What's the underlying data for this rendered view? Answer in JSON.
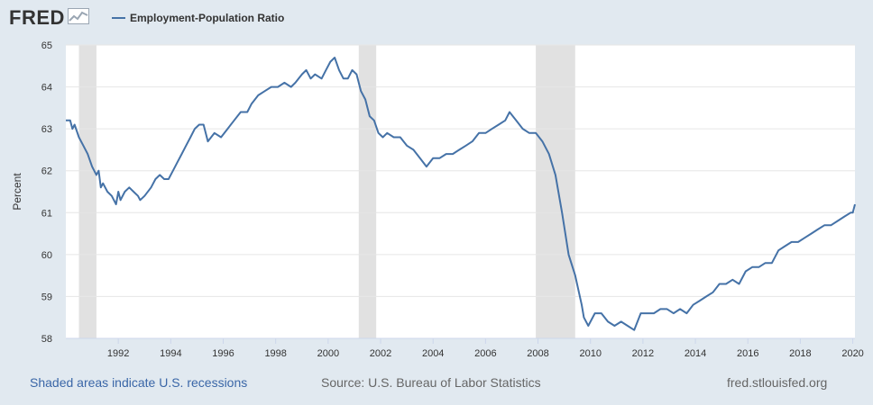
{
  "header": {
    "logo_text": "FRED",
    "logo_icon": "trend-line-icon",
    "legend_label": "Employment-Population Ratio"
  },
  "footer": {
    "recessions_note": "Shaded areas indicate U.S. recessions",
    "source": "Source: U.S. Bureau of Labor Statistics",
    "site": "fred.stlouisfed.org"
  },
  "colors": {
    "series": "#4572a7",
    "background": "#e1e9f0",
    "plot_area": "#ffffff",
    "recession": "#e1e1e1",
    "gridline": "#e6e6e6"
  },
  "chart_data": {
    "type": "line",
    "ylabel": "Percent",
    "xlabel": "",
    "ylim": [
      58,
      65
    ],
    "xlim": [
      "1990-01",
      "2020-02"
    ],
    "yticks": [
      "58",
      "59",
      "60",
      "61",
      "62",
      "63",
      "64",
      "65"
    ],
    "xticks": [
      "1992",
      "1994",
      "1996",
      "1998",
      "2000",
      "2002",
      "2004",
      "2006",
      "2008",
      "2010",
      "2012",
      "2014",
      "2016",
      "2018",
      "2020"
    ],
    "grid": true,
    "legend": "top-left",
    "recessions": [
      [
        "1990-07",
        "1991-03"
      ],
      [
        "2001-03",
        "2001-11"
      ],
      [
        "2007-12",
        "2009-06"
      ]
    ],
    "series": [
      {
        "name": "Employment-Population Ratio",
        "points": [
          [
            "1990-01",
            63.2
          ],
          [
            "1990-03",
            63.2
          ],
          [
            "1990-04",
            63.0
          ],
          [
            "1990-05",
            63.1
          ],
          [
            "1990-07",
            62.8
          ],
          [
            "1990-09",
            62.6
          ],
          [
            "1990-11",
            62.4
          ],
          [
            "1991-01",
            62.1
          ],
          [
            "1991-03",
            61.9
          ],
          [
            "1991-04",
            62.0
          ],
          [
            "1991-05",
            61.6
          ],
          [
            "1991-06",
            61.7
          ],
          [
            "1991-08",
            61.5
          ],
          [
            "1991-10",
            61.4
          ],
          [
            "1991-12",
            61.2
          ],
          [
            "1992-01",
            61.5
          ],
          [
            "1992-02",
            61.3
          ],
          [
            "1992-04",
            61.5
          ],
          [
            "1992-06",
            61.6
          ],
          [
            "1992-08",
            61.5
          ],
          [
            "1992-10",
            61.4
          ],
          [
            "1992-11",
            61.3
          ],
          [
            "1993-01",
            61.4
          ],
          [
            "1993-04",
            61.6
          ],
          [
            "1993-06",
            61.8
          ],
          [
            "1993-08",
            61.9
          ],
          [
            "1993-10",
            61.8
          ],
          [
            "1993-12",
            61.8
          ],
          [
            "1994-02",
            62.0
          ],
          [
            "1994-04",
            62.2
          ],
          [
            "1994-06",
            62.4
          ],
          [
            "1994-08",
            62.6
          ],
          [
            "1994-10",
            62.8
          ],
          [
            "1994-12",
            63.0
          ],
          [
            "1995-02",
            63.1
          ],
          [
            "1995-04",
            63.1
          ],
          [
            "1995-06",
            62.7
          ],
          [
            "1995-09",
            62.9
          ],
          [
            "1995-12",
            62.8
          ],
          [
            "1996-03",
            63.0
          ],
          [
            "1996-06",
            63.2
          ],
          [
            "1996-09",
            63.4
          ],
          [
            "1996-12",
            63.4
          ],
          [
            "1997-02",
            63.6
          ],
          [
            "1997-05",
            63.8
          ],
          [
            "1997-08",
            63.9
          ],
          [
            "1997-11",
            64.0
          ],
          [
            "1998-02",
            64.0
          ],
          [
            "1998-05",
            64.1
          ],
          [
            "1998-08",
            64.0
          ],
          [
            "1998-10",
            64.1
          ],
          [
            "1999-01",
            64.3
          ],
          [
            "1999-03",
            64.4
          ],
          [
            "1999-05",
            64.2
          ],
          [
            "1999-07",
            64.3
          ],
          [
            "1999-10",
            64.2
          ],
          [
            "1999-12",
            64.4
          ],
          [
            "2000-02",
            64.6
          ],
          [
            "2000-04",
            64.7
          ],
          [
            "2000-06",
            64.4
          ],
          [
            "2000-08",
            64.2
          ],
          [
            "2000-10",
            64.2
          ],
          [
            "2000-12",
            64.4
          ],
          [
            "2001-02",
            64.3
          ],
          [
            "2001-04",
            63.9
          ],
          [
            "2001-06",
            63.7
          ],
          [
            "2001-08",
            63.3
          ],
          [
            "2001-10",
            63.2
          ],
          [
            "2001-12",
            62.9
          ],
          [
            "2002-02",
            62.8
          ],
          [
            "2002-04",
            62.9
          ],
          [
            "2002-07",
            62.8
          ],
          [
            "2002-10",
            62.8
          ],
          [
            "2003-01",
            62.6
          ],
          [
            "2003-04",
            62.5
          ],
          [
            "2003-07",
            62.3
          ],
          [
            "2003-10",
            62.1
          ],
          [
            "2004-01",
            62.3
          ],
          [
            "2004-04",
            62.3
          ],
          [
            "2004-07",
            62.4
          ],
          [
            "2004-10",
            62.4
          ],
          [
            "2005-01",
            62.5
          ],
          [
            "2005-04",
            62.6
          ],
          [
            "2005-07",
            62.7
          ],
          [
            "2005-10",
            62.9
          ],
          [
            "2006-01",
            62.9
          ],
          [
            "2006-04",
            63.0
          ],
          [
            "2006-07",
            63.1
          ],
          [
            "2006-10",
            63.2
          ],
          [
            "2006-12",
            63.4
          ],
          [
            "2007-03",
            63.2
          ],
          [
            "2007-06",
            63.0
          ],
          [
            "2007-09",
            62.9
          ],
          [
            "2007-12",
            62.9
          ],
          [
            "2008-03",
            62.7
          ],
          [
            "2008-06",
            62.4
          ],
          [
            "2008-09",
            61.9
          ],
          [
            "2008-12",
            61.0
          ],
          [
            "2009-03",
            60.0
          ],
          [
            "2009-06",
            59.5
          ],
          [
            "2009-09",
            58.8
          ],
          [
            "2009-10",
            58.5
          ],
          [
            "2009-12",
            58.3
          ],
          [
            "2010-03",
            58.6
          ],
          [
            "2010-06",
            58.6
          ],
          [
            "2010-09",
            58.4
          ],
          [
            "2010-12",
            58.3
          ],
          [
            "2011-03",
            58.4
          ],
          [
            "2011-06",
            58.3
          ],
          [
            "2011-09",
            58.2
          ],
          [
            "2011-12",
            58.6
          ],
          [
            "2012-03",
            58.6
          ],
          [
            "2012-06",
            58.6
          ],
          [
            "2012-09",
            58.7
          ],
          [
            "2012-12",
            58.7
          ],
          [
            "2013-03",
            58.6
          ],
          [
            "2013-06",
            58.7
          ],
          [
            "2013-09",
            58.6
          ],
          [
            "2013-12",
            58.8
          ],
          [
            "2014-03",
            58.9
          ],
          [
            "2014-06",
            59.0
          ],
          [
            "2014-09",
            59.1
          ],
          [
            "2014-12",
            59.3
          ],
          [
            "2015-03",
            59.3
          ],
          [
            "2015-06",
            59.4
          ],
          [
            "2015-09",
            59.3
          ],
          [
            "2015-12",
            59.6
          ],
          [
            "2016-03",
            59.7
          ],
          [
            "2016-06",
            59.7
          ],
          [
            "2016-09",
            59.8
          ],
          [
            "2016-12",
            59.8
          ],
          [
            "2017-03",
            60.1
          ],
          [
            "2017-06",
            60.2
          ],
          [
            "2017-09",
            60.3
          ],
          [
            "2017-12",
            60.3
          ],
          [
            "2018-03",
            60.4
          ],
          [
            "2018-06",
            60.5
          ],
          [
            "2018-09",
            60.6
          ],
          [
            "2018-12",
            60.7
          ],
          [
            "2019-03",
            60.7
          ],
          [
            "2019-06",
            60.8
          ],
          [
            "2019-09",
            60.9
          ],
          [
            "2019-12",
            61.0
          ],
          [
            "2020-01",
            61.0
          ],
          [
            "2020-02",
            61.2
          ]
        ]
      }
    ]
  }
}
